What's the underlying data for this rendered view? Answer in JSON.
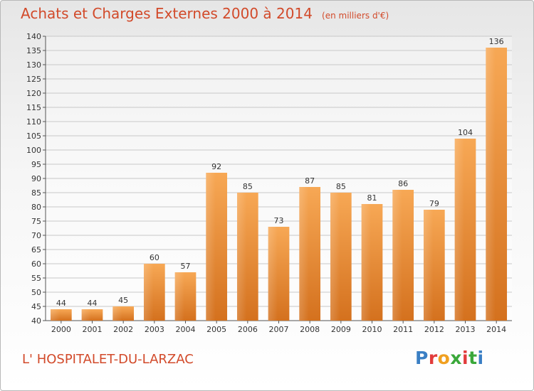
{
  "header": {
    "title": "Achats et Charges Externes 2000 à 2014",
    "subtitle": "(en milliers d'€)"
  },
  "footer": {
    "commune": "L' HOSPITALET-DU-LARZAC",
    "logo_text": "Proxiti",
    "logo_colors": [
      "#3a7fc4",
      "#e23b3b",
      "#f0a020",
      "#3aa83a",
      "#e23b3b",
      "#3aa83a",
      "#3a7fc4"
    ]
  },
  "chart_data": {
    "type": "bar",
    "title": "Achats et Charges Externes 2000 à 2014",
    "subtitle": "(en milliers d'€)",
    "categories": [
      "2000",
      "2001",
      "2002",
      "2003",
      "2004",
      "2005",
      "2006",
      "2007",
      "2008",
      "2009",
      "2010",
      "2011",
      "2012",
      "2013",
      "2014"
    ],
    "values": [
      44,
      44,
      45,
      60,
      57,
      92,
      85,
      73,
      87,
      85,
      81,
      86,
      79,
      104,
      136
    ],
    "ylim": [
      40,
      140
    ],
    "yticks": [
      40,
      45,
      50,
      55,
      60,
      65,
      70,
      75,
      80,
      85,
      90,
      95,
      100,
      105,
      110,
      115,
      120,
      125,
      130,
      135,
      140
    ],
    "grid": true,
    "bar_color_top": "#f7a855",
    "bar_color_bottom": "#d4711e",
    "title_color": "#d24a2a"
  }
}
